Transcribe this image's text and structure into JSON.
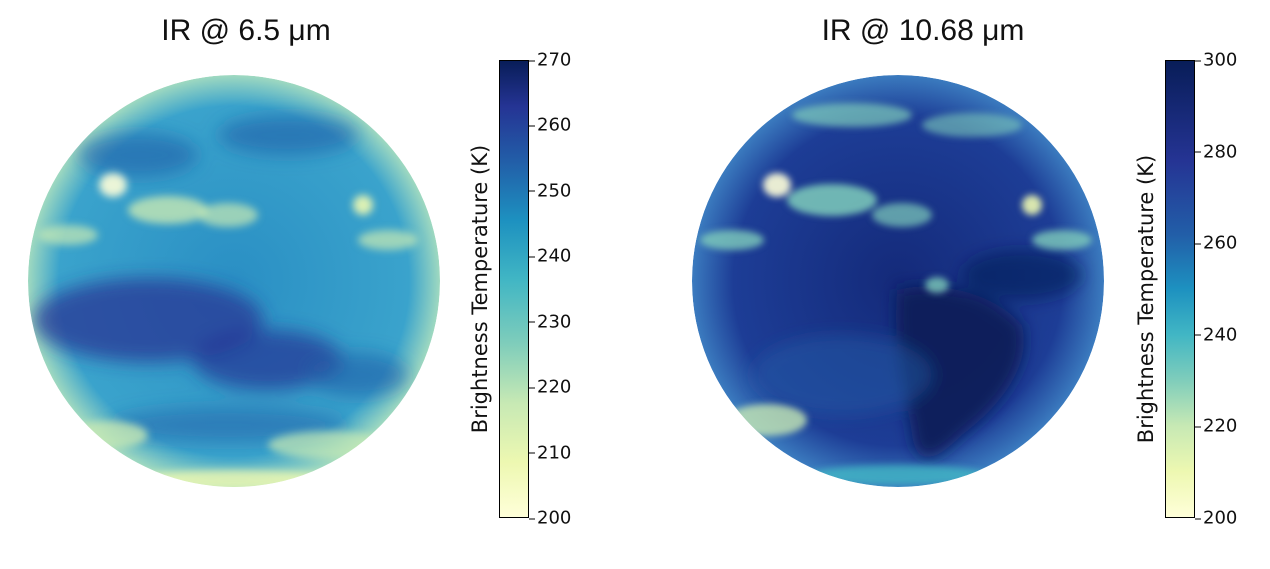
{
  "panels": [
    {
      "title": "IR @ 6.5 μm",
      "colorbar": {
        "label": "Brightness Temperature (K)",
        "min": 200,
        "max": 270,
        "ticks": [
          "270",
          "260",
          "250",
          "240",
          "230",
          "220",
          "210",
          "200"
        ]
      }
    },
    {
      "title": "IR @ 10.68 μm",
      "colorbar": {
        "label": "Brightness Temperature (K)",
        "min": 200,
        "max": 300,
        "ticks": [
          "300",
          "280",
          "260",
          "240",
          "220",
          "200"
        ]
      }
    }
  ],
  "colormap": [
    "#ffffd9",
    "#edf8b1",
    "#c7e9b4",
    "#7fcdbb",
    "#41b6c4",
    "#1d91c0",
    "#225ea8",
    "#253494",
    "#081d58"
  ]
}
